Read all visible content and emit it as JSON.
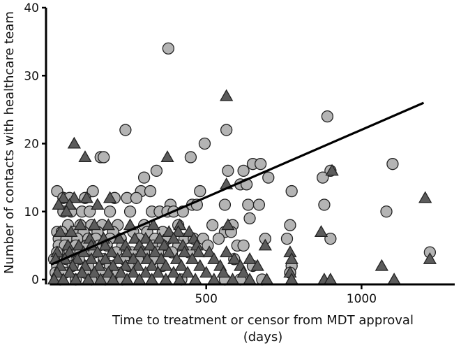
{
  "chart_data": {
    "type": "scatter",
    "title": "",
    "xlabel_line1": "Time to treatment or censor from MDT approval",
    "xlabel_line2": "(days)",
    "ylabel": "Number of contacts with healthcare team",
    "xlim": [
      0,
      1300
    ],
    "ylim": [
      0,
      40
    ],
    "x_ticks": [
      500,
      1000
    ],
    "y_ticks": [
      0,
      10,
      20,
      30,
      40
    ],
    "grid": false,
    "legend": "none",
    "colors": {
      "circle_fill": "#b4b4b4",
      "triangle_fill": "#5c5c5c",
      "stroke": "#222222",
      "axis": "#000000"
    },
    "series": [
      {
        "marker": "circle",
        "points": [
          [
            378,
            34
          ],
          [
            890,
            24
          ],
          [
            240,
            22
          ],
          [
            565,
            22
          ],
          [
            495,
            20
          ],
          [
            160,
            18
          ],
          [
            170,
            18
          ],
          [
            450,
            18
          ],
          [
            570,
            16
          ],
          [
            340,
            16
          ],
          [
            620,
            16
          ],
          [
            650,
            17
          ],
          [
            675,
            17
          ],
          [
            900,
            16
          ],
          [
            1100,
            17
          ],
          [
            300,
            15
          ],
          [
            700,
            15
          ],
          [
            875,
            15
          ],
          [
            20,
            13
          ],
          [
            135,
            13
          ],
          [
            290,
            13
          ],
          [
            320,
            13
          ],
          [
            480,
            13
          ],
          [
            610,
            14
          ],
          [
            630,
            14
          ],
          [
            775,
            13
          ],
          [
            40,
            12
          ],
          [
            60,
            12
          ],
          [
            110,
            12
          ],
          [
            205,
            12
          ],
          [
            245,
            12
          ],
          [
            275,
            12
          ],
          [
            385,
            11
          ],
          [
            455,
            11
          ],
          [
            470,
            11
          ],
          [
            560,
            11
          ],
          [
            635,
            11
          ],
          [
            670,
            11
          ],
          [
            880,
            11
          ],
          [
            40,
            10
          ],
          [
            65,
            10
          ],
          [
            100,
            10
          ],
          [
            125,
            10
          ],
          [
            190,
            10
          ],
          [
            255,
            10
          ],
          [
            325,
            10
          ],
          [
            350,
            10
          ],
          [
            375,
            10
          ],
          [
            395,
            10
          ],
          [
            425,
            10
          ],
          [
            1080,
            10
          ],
          [
            55,
            8
          ],
          [
            95,
            8
          ],
          [
            130,
            8
          ],
          [
            165,
            8
          ],
          [
            215,
            8
          ],
          [
            300,
            8
          ],
          [
            410,
            8
          ],
          [
            520,
            8
          ],
          [
            585,
            8
          ],
          [
            640,
            9
          ],
          [
            770,
            8
          ],
          [
            20,
            7
          ],
          [
            35,
            7
          ],
          [
            75,
            7
          ],
          [
            105,
            7
          ],
          [
            150,
            7
          ],
          [
            200,
            7
          ],
          [
            265,
            7
          ],
          [
            310,
            7
          ],
          [
            360,
            7
          ],
          [
            560,
            7
          ],
          [
            580,
            7
          ],
          [
            25,
            6
          ],
          [
            50,
            6
          ],
          [
            85,
            6
          ],
          [
            120,
            6
          ],
          [
            145,
            6
          ],
          [
            190,
            6
          ],
          [
            225,
            6
          ],
          [
            285,
            6
          ],
          [
            335,
            6
          ],
          [
            375,
            6
          ],
          [
            430,
            6
          ],
          [
            460,
            6
          ],
          [
            490,
            6
          ],
          [
            540,
            6
          ],
          [
            600,
            5
          ],
          [
            690,
            6
          ],
          [
            760,
            6
          ],
          [
            900,
            6
          ],
          [
            25,
            5
          ],
          [
            45,
            5
          ],
          [
            80,
            5
          ],
          [
            115,
            5
          ],
          [
            155,
            5
          ],
          [
            180,
            5
          ],
          [
            230,
            5
          ],
          [
            330,
            5
          ],
          [
            360,
            5
          ],
          [
            410,
            5
          ],
          [
            505,
            5
          ],
          [
            620,
            5
          ],
          [
            20,
            4
          ],
          [
            60,
            4
          ],
          [
            95,
            4
          ],
          [
            140,
            4
          ],
          [
            210,
            4
          ],
          [
            260,
            4
          ],
          [
            300,
            4
          ],
          [
            345,
            4
          ],
          [
            390,
            4
          ],
          [
            445,
            4
          ],
          [
            1220,
            4
          ],
          [
            10,
            3
          ],
          [
            50,
            3
          ],
          [
            90,
            3
          ],
          [
            170,
            3
          ],
          [
            235,
            3
          ],
          [
            280,
            3
          ],
          [
            330,
            3
          ],
          [
            590,
            3
          ],
          [
            20,
            2
          ],
          [
            70,
            2
          ],
          [
            120,
            2
          ],
          [
            190,
            2
          ],
          [
            250,
            2
          ],
          [
            360,
            2
          ],
          [
            650,
            2
          ],
          [
            775,
            2
          ],
          [
            15,
            1
          ],
          [
            45,
            1
          ],
          [
            110,
            1
          ],
          [
            165,
            1
          ],
          [
            215,
            1
          ],
          [
            770,
            1
          ],
          [
            30,
            0
          ],
          [
            80,
            0
          ],
          [
            130,
            0
          ],
          [
            175,
            0
          ],
          [
            230,
            0
          ],
          [
            420,
            0
          ],
          [
            560,
            0
          ],
          [
            610,
            0
          ],
          [
            680,
            0
          ]
        ]
      },
      {
        "marker": "triangle",
        "points": [
          [
            565,
            27
          ],
          [
            75,
            20
          ],
          [
            110,
            18
          ],
          [
            375,
            18
          ],
          [
            905,
            16
          ],
          [
            565,
            14
          ],
          [
            40,
            12
          ],
          [
            75,
            12
          ],
          [
            115,
            12
          ],
          [
            190,
            12
          ],
          [
            415,
            8
          ],
          [
            570,
            8
          ],
          [
            870,
            7
          ],
          [
            25,
            11
          ],
          [
            60,
            11
          ],
          [
            150,
            11
          ],
          [
            1205,
            12
          ],
          [
            50,
            10
          ],
          [
            95,
            8
          ],
          [
            140,
            8
          ],
          [
            185,
            8
          ],
          [
            255,
            8
          ],
          [
            330,
            8
          ],
          [
            380,
            7
          ],
          [
            410,
            7
          ],
          [
            445,
            7
          ],
          [
            30,
            7
          ],
          [
            65,
            7
          ],
          [
            125,
            6
          ],
          [
            170,
            6
          ],
          [
            220,
            6
          ],
          [
            270,
            6
          ],
          [
            305,
            6
          ],
          [
            350,
            6
          ],
          [
            395,
            6
          ],
          [
            460,
            6
          ],
          [
            690,
            5
          ],
          [
            770,
            4
          ],
          [
            55,
            5
          ],
          [
            90,
            5
          ],
          [
            130,
            5
          ],
          [
            175,
            5
          ],
          [
            240,
            5
          ],
          [
            285,
            5
          ],
          [
            320,
            5
          ],
          [
            365,
            5
          ],
          [
            425,
            5
          ],
          [
            470,
            5
          ],
          [
            565,
            4
          ],
          [
            20,
            4
          ],
          [
            60,
            4
          ],
          [
            105,
            4
          ],
          [
            150,
            4
          ],
          [
            195,
            4
          ],
          [
            245,
            4
          ],
          [
            290,
            4
          ],
          [
            335,
            4
          ],
          [
            380,
            4
          ],
          [
            430,
            4
          ],
          [
            475,
            4
          ],
          [
            510,
            4
          ],
          [
            590,
            3
          ],
          [
            640,
            3
          ],
          [
            775,
            3
          ],
          [
            1220,
            3
          ],
          [
            15,
            3
          ],
          [
            45,
            3
          ],
          [
            85,
            3
          ],
          [
            130,
            3
          ],
          [
            175,
            3
          ],
          [
            215,
            3
          ],
          [
            265,
            3
          ],
          [
            310,
            3
          ],
          [
            355,
            3
          ],
          [
            405,
            3
          ],
          [
            455,
            3
          ],
          [
            525,
            3
          ],
          [
            610,
            2
          ],
          [
            665,
            2
          ],
          [
            1065,
            2
          ],
          [
            30,
            2
          ],
          [
            70,
            2
          ],
          [
            110,
            2
          ],
          [
            155,
            2
          ],
          [
            200,
            2
          ],
          [
            240,
            2
          ],
          [
            280,
            2
          ],
          [
            325,
            2
          ],
          [
            370,
            2
          ],
          [
            420,
            2
          ],
          [
            480,
            2
          ],
          [
            545,
            2
          ],
          [
            20,
            1
          ],
          [
            60,
            1
          ],
          [
            100,
            1
          ],
          [
            140,
            1
          ],
          [
            185,
            1
          ],
          [
            225,
            1
          ],
          [
            265,
            1
          ],
          [
            305,
            1
          ],
          [
            345,
            1
          ],
          [
            395,
            1
          ],
          [
            440,
            1
          ],
          [
            500,
            1
          ],
          [
            555,
            1
          ],
          [
            620,
            1
          ],
          [
            770,
            1
          ],
          [
            10,
            0
          ],
          [
            40,
            0
          ],
          [
            80,
            0
          ],
          [
            120,
            0
          ],
          [
            160,
            0
          ],
          [
            200,
            0
          ],
          [
            245,
            0
          ],
          [
            285,
            0
          ],
          [
            325,
            0
          ],
          [
            370,
            0
          ],
          [
            415,
            0
          ],
          [
            465,
            0
          ],
          [
            525,
            0
          ],
          [
            585,
            0
          ],
          [
            640,
            0
          ],
          [
            695,
            0
          ],
          [
            775,
            0
          ],
          [
            880,
            0
          ],
          [
            900,
            0
          ],
          [
            1105,
            0
          ]
        ]
      }
    ],
    "trend_line": {
      "x": [
        0,
        1200
      ],
      "y": [
        2.2,
        26
      ]
    }
  }
}
